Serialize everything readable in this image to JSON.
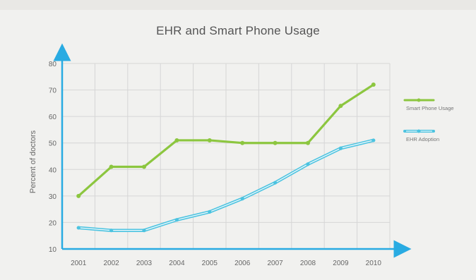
{
  "chart_data": {
    "type": "line",
    "title": "EHR and Smart Phone Usage",
    "xlabel": "",
    "ylabel": "Percent of doctors",
    "categories": [
      "2001",
      "2002",
      "2003",
      "2004",
      "2005",
      "2006",
      "2007",
      "2008",
      "2009",
      "2010"
    ],
    "y_ticks": [
      "10",
      "20",
      "30",
      "40",
      "50",
      "60",
      "70",
      "80"
    ],
    "ylim": [
      10,
      80
    ],
    "grid": true,
    "legend_position": "right",
    "series": [
      {
        "name": "Smart Phone Usage",
        "color": "#8cc63f",
        "values": [
          30,
          41,
          41,
          51,
          51,
          50,
          50,
          50,
          64,
          72
        ]
      },
      {
        "name": "EHR Adoption",
        "color": "#4cc3e0",
        "values": [
          18,
          17,
          17,
          21,
          24,
          29,
          35,
          42,
          48,
          51
        ]
      }
    ]
  }
}
